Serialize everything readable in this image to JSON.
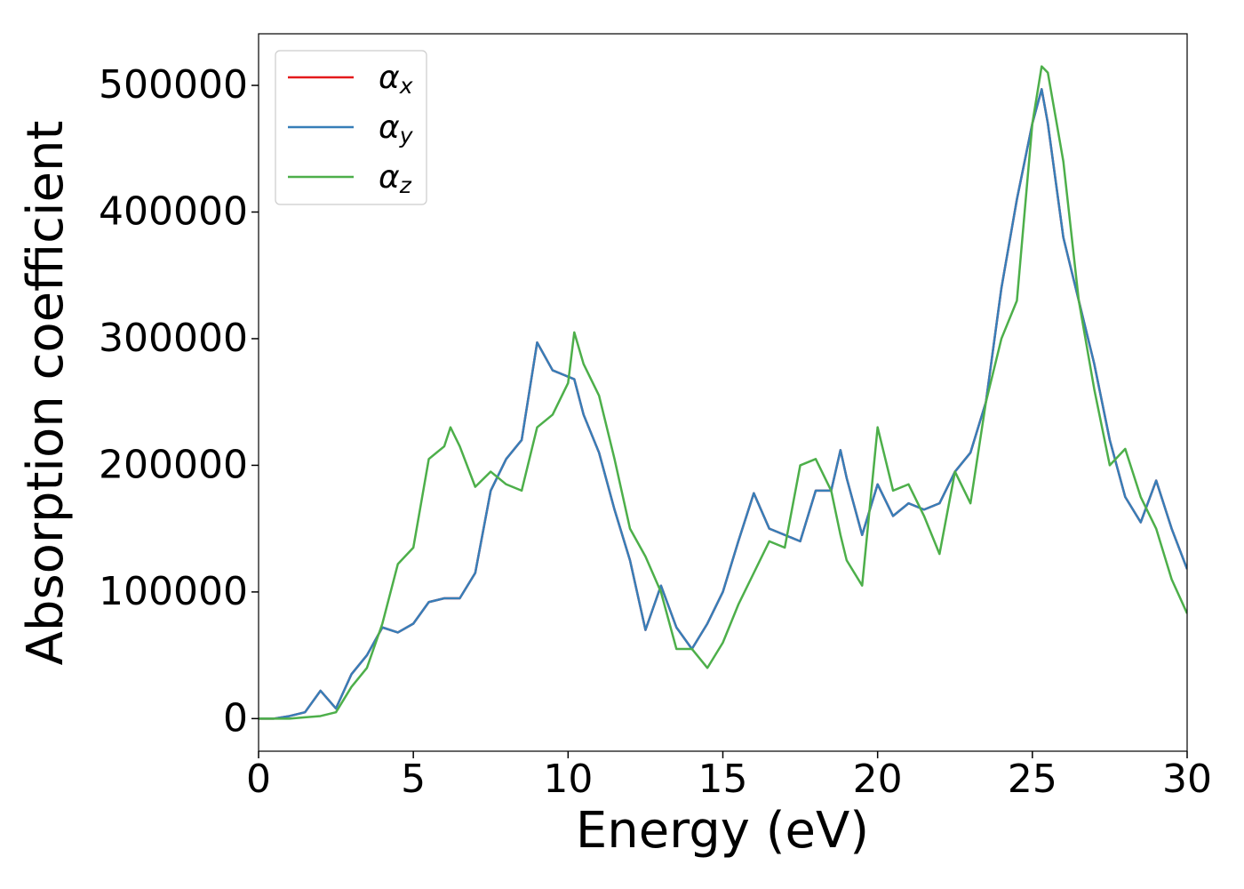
{
  "chart_data": {
    "type": "line",
    "xlabel": "Energy (eV)",
    "ylabel": "Absorption coefficient",
    "x": [
      0,
      0.5,
      1,
      1.5,
      2,
      2.5,
      3,
      3.5,
      4,
      4.5,
      5,
      5.5,
      6,
      6.2,
      6.5,
      7,
      7.5,
      8,
      8.5,
      9,
      9.5,
      10,
      10.2,
      10.5,
      11,
      11.5,
      12,
      12.5,
      13,
      13.5,
      14,
      14.5,
      15,
      15.5,
      16,
      16.5,
      17,
      17.5,
      18,
      18.5,
      18.8,
      19,
      19.5,
      20,
      20.5,
      21,
      21.5,
      22,
      22.5,
      23,
      23.5,
      24,
      24.5,
      25,
      25.3,
      25.5,
      26,
      26.5,
      27,
      27.5,
      28,
      28.5,
      29,
      29.5,
      30
    ],
    "series": [
      {
        "name": "αx",
        "color": "#e41a1c",
        "values": [
          0,
          0,
          2000,
          5000,
          22000,
          8000,
          35000,
          50000,
          72000,
          68000,
          75000,
          92000,
          95000,
          95000,
          95000,
          115000,
          180000,
          205000,
          220000,
          297000,
          275000,
          270000,
          268000,
          240000,
          210000,
          165000,
          125000,
          70000,
          105000,
          72000,
          55000,
          75000,
          100000,
          140000,
          178000,
          150000,
          145000,
          140000,
          180000,
          180000,
          212000,
          190000,
          145000,
          185000,
          160000,
          170000,
          165000,
          170000,
          195000,
          210000,
          250000,
          340000,
          410000,
          470000,
          497000,
          470000,
          380000,
          330000,
          280000,
          220000,
          175000,
          155000,
          188000,
          150000,
          118000
        ]
      },
      {
        "name": "αy",
        "color": "#377eb8",
        "values": [
          0,
          0,
          2000,
          5000,
          22000,
          8000,
          35000,
          50000,
          72000,
          68000,
          75000,
          92000,
          95000,
          95000,
          95000,
          115000,
          180000,
          205000,
          220000,
          297000,
          275000,
          270000,
          268000,
          240000,
          210000,
          165000,
          125000,
          70000,
          105000,
          72000,
          55000,
          75000,
          100000,
          140000,
          178000,
          150000,
          145000,
          140000,
          180000,
          180000,
          212000,
          190000,
          145000,
          185000,
          160000,
          170000,
          165000,
          170000,
          195000,
          210000,
          250000,
          340000,
          410000,
          470000,
          497000,
          470000,
          380000,
          330000,
          280000,
          220000,
          175000,
          155000,
          188000,
          150000,
          118000
        ]
      },
      {
        "name": "αz",
        "color": "#4daf4a",
        "values": [
          0,
          0,
          0,
          1000,
          2000,
          5000,
          25000,
          40000,
          75000,
          122000,
          135000,
          205000,
          215000,
          230000,
          215000,
          183000,
          195000,
          185000,
          180000,
          230000,
          240000,
          265000,
          305000,
          280000,
          255000,
          205000,
          150000,
          128000,
          100000,
          55000,
          55000,
          40000,
          60000,
          90000,
          115000,
          140000,
          135000,
          200000,
          205000,
          180000,
          145000,
          125000,
          105000,
          230000,
          180000,
          185000,
          160000,
          130000,
          195000,
          170000,
          250000,
          300000,
          330000,
          470000,
          515000,
          510000,
          440000,
          330000,
          260000,
          200000,
          213000,
          175000,
          150000,
          110000,
          83000
        ]
      }
    ],
    "xlim": [
      0,
      30
    ],
    "xticks": [
      0,
      5,
      10,
      15,
      20,
      25,
      30
    ],
    "ylim": [
      -25750,
      540750
    ],
    "yticks": [
      0,
      100000,
      200000,
      300000,
      400000,
      500000
    ],
    "legend": "upper left",
    "grid": false
  }
}
